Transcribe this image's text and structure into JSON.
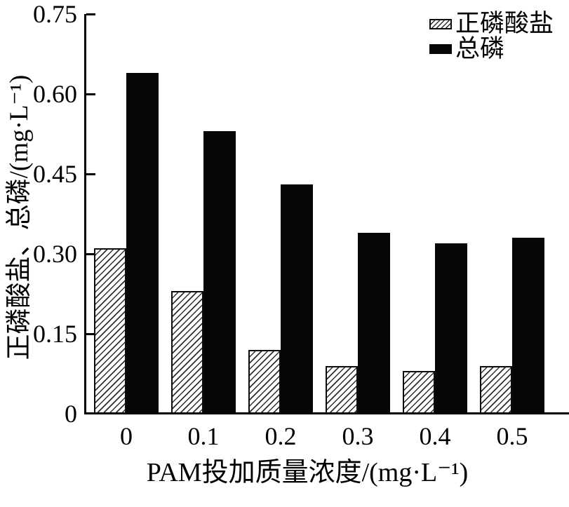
{
  "chart_data": {
    "type": "bar",
    "title": "",
    "categories": [
      "0",
      "0.1",
      "0.2",
      "0.3",
      "0.4",
      "0.5"
    ],
    "series": [
      {
        "key": "orthophosphate",
        "name": "正磷酸盐",
        "style": "hatched",
        "values": [
          0.31,
          0.23,
          0.12,
          0.09,
          0.08,
          0.09
        ]
      },
      {
        "key": "total-phosphorus",
        "name": "总磷",
        "style": "solid",
        "values": [
          0.64,
          0.53,
          0.43,
          0.34,
          0.32,
          0.33
        ]
      }
    ],
    "xlabel": "PAM投加质量浓度/(mg·L⁻¹)",
    "ylabel": "正磷酸盐、总磷/(mg·L⁻¹)",
    "ylim": [
      0,
      0.75
    ],
    "yticks": [
      0,
      0.15,
      0.3,
      0.45,
      0.6,
      0.75
    ],
    "ytick_labels": [
      "0",
      "0.15",
      "0.30",
      "0.45",
      "0.60",
      "0.75"
    ],
    "legend_position": "top-right",
    "grid": false,
    "colors": {
      "bar_solid": "#060606",
      "bar_hatch_line": "#2e2e2e",
      "axis": "#000000",
      "text": "#000000",
      "background": "#ffffff"
    }
  }
}
